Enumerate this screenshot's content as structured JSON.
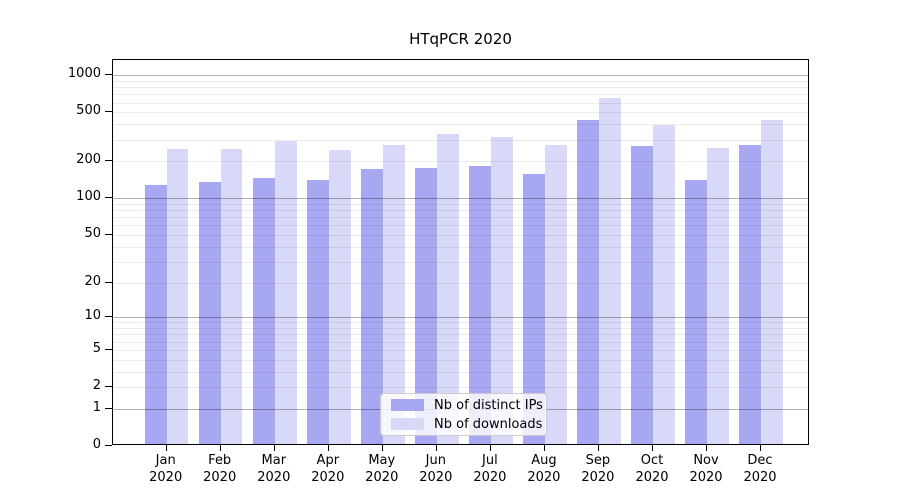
{
  "chart_data": {
    "type": "bar",
    "title": "HTqPCR 2020",
    "categories": [
      "Jan 2020",
      "Feb 2020",
      "Mar 2020",
      "Apr 2020",
      "May 2020",
      "Jun 2020",
      "Jul 2020",
      "Aug 2020",
      "Sep 2020",
      "Oct 2020",
      "Nov 2020",
      "Dec 2020"
    ],
    "x_tick_line1": [
      "Jan",
      "Feb",
      "Mar",
      "Apr",
      "May",
      "Jun",
      "Jul",
      "Aug",
      "Sep",
      "Oct",
      "Nov",
      "Dec"
    ],
    "x_tick_line2": "2020",
    "series": [
      {
        "name": "Nb of distinct IPs",
        "color": "#a8a8f2",
        "values": [
          124,
          132,
          142,
          135,
          167,
          171,
          177,
          153,
          418,
          258,
          136,
          260
        ]
      },
      {
        "name": "Nb of downloads",
        "color": "#d8d8f8",
        "values": [
          241,
          241,
          284,
          239,
          264,
          322,
          306,
          262,
          634,
          383,
          246,
          415
        ]
      }
    ],
    "y_scale": "log1p",
    "ylim": [
      0,
      1000
    ],
    "y_ticks": [
      0,
      1,
      2,
      5,
      10,
      20,
      50,
      100,
      200,
      500,
      1000
    ],
    "y_grid_major": [
      1,
      10,
      100,
      1000
    ],
    "y_grid_minor": [
      2,
      3,
      4,
      5,
      6,
      7,
      8,
      9,
      20,
      30,
      40,
      50,
      60,
      70,
      80,
      90,
      200,
      300,
      400,
      500,
      600,
      700,
      800,
      900
    ],
    "grid_on": true,
    "legend_position": "lower center",
    "colors": {
      "spine": "#000000",
      "grid_major": "rgba(0,0,0,0.30)",
      "grid_minor": "rgba(0,0,0,0.07)",
      "legend_border": "#cccccc"
    }
  }
}
